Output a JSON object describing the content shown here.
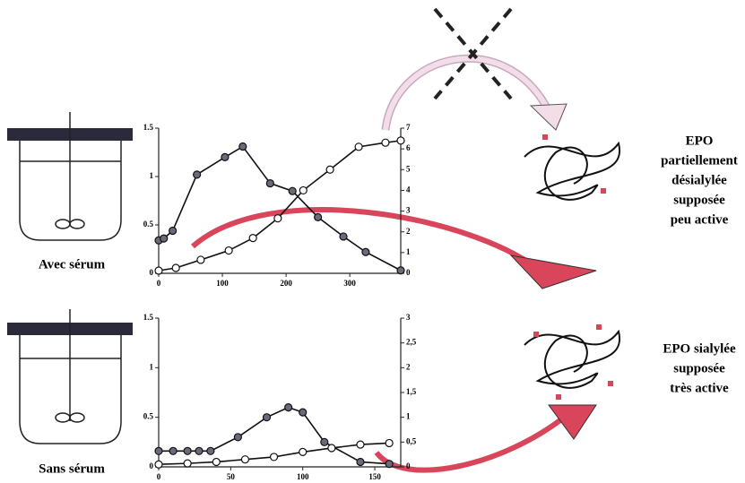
{
  "chart_data": [
    {
      "type": "line",
      "xlim": [
        0,
        380
      ],
      "xticks": [
        0,
        100,
        200,
        300
      ],
      "ylim": [
        0,
        1.5
      ],
      "yticks": [
        0,
        0.5,
        1,
        1.5
      ],
      "y2lim": [
        0,
        7
      ],
      "y2ticks": [
        0,
        1,
        2,
        3,
        4,
        5,
        6,
        7
      ],
      "series": [
        {
          "color": "#6a6a7a",
          "marker": "filled",
          "x": [
            0,
            8,
            22,
            60,
            104,
            132,
            175,
            210,
            250,
            290,
            325,
            380
          ],
          "values": [
            0.34,
            0.36,
            0.44,
            1.02,
            1.2,
            1.31,
            0.93,
            0.85,
            0.58,
            0.38,
            0.22,
            0.03
          ]
        },
        {
          "color": "#ffffff",
          "marker": "open",
          "axis": "y2",
          "x": [
            0,
            27,
            66,
            110,
            148,
            187,
            227,
            269,
            314,
            356,
            380
          ],
          "values": [
            0.13,
            0.26,
            0.65,
            1.1,
            1.7,
            2.65,
            4,
            5,
            6.1,
            6.3,
            6.4
          ]
        }
      ]
    },
    {
      "type": "line",
      "xlim": [
        0,
        168
      ],
      "xticks": [
        0,
        50,
        100,
        150
      ],
      "ylim": [
        0,
        1.5
      ],
      "yticks": [
        0,
        {
          "value": 0.5,
          "label": "0.5"
        },
        1,
        1.5
      ],
      "y2lim": [
        0,
        3
      ],
      "y2ticks": [
        0,
        {
          "value": 0.5,
          "label": "0,5"
        },
        1,
        {
          "value": 1.5,
          "label": "1,5"
        },
        2,
        {
          "value": 2.5,
          "label": "2,5"
        },
        3
      ],
      "series": [
        {
          "color": "#6a6a7a",
          "marker": "filled",
          "x": [
            0,
            10,
            20,
            28,
            36,
            55,
            75,
            90,
            100,
            115,
            140,
            160
          ],
          "values": [
            0.16,
            0.16,
            0.16,
            0.16,
            0.16,
            0.3,
            0.5,
            0.6,
            0.55,
            0.25,
            0.05,
            0.03
          ]
        },
        {
          "color": "#ffffff",
          "marker": "open",
          "axis": "y2",
          "x": [
            0,
            20,
            40,
            60,
            80,
            100,
            120,
            140,
            160
          ],
          "values": [
            0.05,
            0.07,
            0.1,
            0.15,
            0.2,
            0.3,
            0.38,
            0.45,
            0.48
          ]
        }
      ]
    }
  ],
  "reactors": [
    "Avec sérum",
    "Sans sérum"
  ],
  "products": [
    [
      "EPO",
      "partiellement",
      "désialylée",
      "supposée",
      "peu active"
    ],
    [
      "EPO sialylée",
      "supposée",
      "très active"
    ]
  ]
}
